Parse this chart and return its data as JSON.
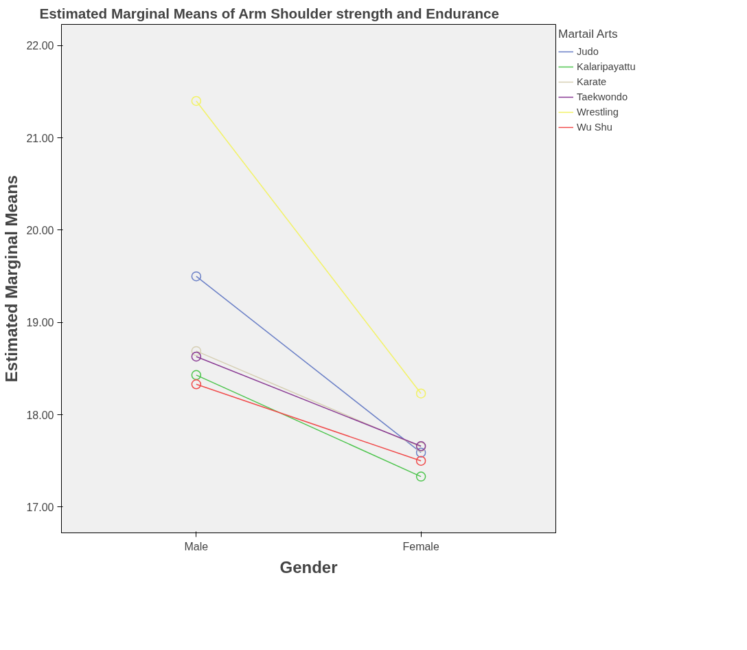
{
  "chart_data": {
    "type": "line",
    "title": "Estimated Marginal Means of Arm Shoulder strength and Endurance",
    "xlabel": "Gender",
    "ylabel": "Estimated Marginal Means",
    "legend_title": "Martail Arts",
    "categories": [
      "Male",
      "Female"
    ],
    "series": [
      {
        "name": "Judo",
        "color": "#6a7fc6",
        "values": [
          19.5,
          17.59
        ]
      },
      {
        "name": "Kalaripayattu",
        "color": "#4cc44c",
        "values": [
          18.43,
          17.33
        ]
      },
      {
        "name": "Karate",
        "color": "#d6cfb4",
        "values": [
          18.69,
          17.65
        ]
      },
      {
        "name": "Taekwondo",
        "color": "#8a3c94",
        "values": [
          18.63,
          17.66
        ]
      },
      {
        "name": "Wrestling",
        "color": "#f2f266",
        "values": [
          21.4,
          18.23
        ]
      },
      {
        "name": "Wu Shu",
        "color": "#f04c4c",
        "values": [
          18.33,
          17.5
        ]
      }
    ],
    "ylim": [
      16.72,
      22.23
    ],
    "yticks": [
      {
        "value": 17,
        "label": "17.00"
      },
      {
        "value": 18,
        "label": "18.00"
      },
      {
        "value": 19,
        "label": "19.00"
      },
      {
        "value": 20,
        "label": "20.00"
      },
      {
        "value": 21,
        "label": "21.00"
      },
      {
        "value": 22,
        "label": "22.00"
      }
    ],
    "marker": "circle",
    "line_style": "solid",
    "grid": false,
    "legend": "top right"
  }
}
